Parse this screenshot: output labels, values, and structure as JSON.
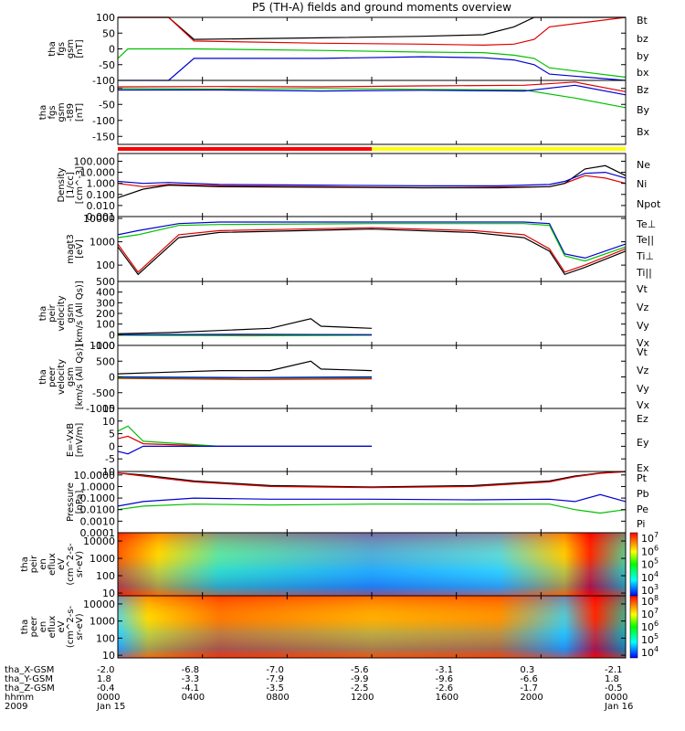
{
  "title": "P5 (TH-A) fields and ground moments overview",
  "chart_data": [
    {
      "id": "fgs",
      "type": "line",
      "ylabel": [
        "tha",
        "fgs",
        "gsm",
        "[nT]"
      ],
      "yscale": "linear",
      "ylim": [
        -100,
        100
      ],
      "yticks": [
        "100",
        "50",
        "0",
        "-50",
        "-100"
      ],
      "series": [
        {
          "name": "Bt",
          "color": "#000000",
          "x": [
            0,
            0.1,
            0.15,
            0.4,
            0.6,
            0.72,
            0.78,
            0.82,
            0.85,
            1
          ],
          "y": [
            100,
            100,
            30,
            35,
            40,
            45,
            70,
            100,
            100,
            100
          ]
        },
        {
          "name": "bz",
          "color": "#e00000",
          "x": [
            0,
            0.1,
            0.15,
            0.4,
            0.6,
            0.72,
            0.78,
            0.82,
            0.85,
            1
          ],
          "y": [
            100,
            100,
            25,
            18,
            15,
            12,
            15,
            30,
            70,
            100
          ]
        },
        {
          "name": "by",
          "color": "#00c000",
          "x": [
            0,
            0.02,
            0.15,
            0.4,
            0.6,
            0.72,
            0.78,
            0.82,
            0.85,
            1
          ],
          "y": [
            -30,
            0,
            0,
            -5,
            -10,
            -12,
            -20,
            -30,
            -60,
            -90
          ]
        },
        {
          "name": "bx",
          "color": "#0000d0",
          "x": [
            0,
            0.1,
            0.15,
            0.4,
            0.6,
            0.72,
            0.78,
            0.82,
            0.85,
            1
          ],
          "y": [
            -100,
            -100,
            -30,
            -30,
            -25,
            -28,
            -35,
            -50,
            -80,
            -100
          ]
        }
      ]
    },
    {
      "id": "fgs_l",
      "type": "line",
      "ylabel": [
        "tha",
        "fgs",
        "gsm",
        "-t89",
        "[nT]"
      ],
      "yscale": "linear",
      "ylim": [
        -175,
        25
      ],
      "yticks": [
        "0",
        "-50",
        "-100",
        "-150"
      ],
      "series": [
        {
          "name": "Bz",
          "color": "#e00000",
          "x": [
            0,
            0.2,
            0.4,
            0.6,
            0.8,
            0.9,
            1
          ],
          "y": [
            5,
            6,
            5,
            8,
            10,
            20,
            -10
          ]
        },
        {
          "name": "By",
          "color": "#00c000",
          "x": [
            0,
            0.2,
            0.4,
            0.6,
            0.8,
            0.9,
            1
          ],
          "y": [
            0,
            -2,
            0,
            -3,
            -5,
            -30,
            -60
          ]
        },
        {
          "name": "Bx",
          "color": "#0000d0",
          "x": [
            0,
            0.2,
            0.4,
            0.6,
            0.8,
            0.9,
            1
          ],
          "y": [
            -5,
            -5,
            -8,
            -6,
            -8,
            10,
            -20
          ]
        }
      ]
    },
    {
      "id": "bar",
      "type": "bar",
      "segments": [
        {
          "x0": 0,
          "x1": 0.5,
          "color": "#ff0000"
        },
        {
          "x0": 0.5,
          "x1": 1,
          "color": "#ffff00"
        }
      ]
    },
    {
      "id": "density",
      "type": "line",
      "ylabel": [
        "Density",
        "[1/cc]",
        "[cm^-3]"
      ],
      "yscale": "log",
      "ylim": [
        0.001,
        500
      ],
      "yticks": [
        "100.000",
        "10.000",
        "1.000",
        "0.100",
        "0.010",
        "0.001"
      ],
      "series": [
        {
          "name": "Ne",
          "color": "#e00000",
          "x": [
            0,
            0.05,
            0.1,
            0.2,
            0.4,
            0.6,
            0.75,
            0.85,
            0.88,
            0.92,
            0.96,
            1
          ],
          "y": [
            1,
            0.5,
            0.8,
            0.6,
            0.5,
            0.4,
            0.45,
            0.5,
            1,
            5,
            3,
            1
          ]
        },
        {
          "name": "Ni",
          "color": "#000000",
          "x": [
            0,
            0.05,
            0.1,
            0.2,
            0.4,
            0.6,
            0.75,
            0.85,
            0.88,
            0.92,
            0.96,
            1
          ],
          "y": [
            0.05,
            0.3,
            0.7,
            0.5,
            0.45,
            0.4,
            0.4,
            0.5,
            1,
            20,
            40,
            5
          ]
        },
        {
          "name": "Npot",
          "color": "#0000d0",
          "x": [
            0,
            0.05,
            0.1,
            0.2,
            0.4,
            0.6,
            0.75,
            0.85,
            0.88,
            0.92,
            0.96,
            1
          ],
          "y": [
            1.5,
            1,
            1.2,
            0.8,
            0.7,
            0.6,
            0.6,
            0.8,
            1.5,
            8,
            10,
            3
          ]
        }
      ]
    },
    {
      "id": "temp",
      "type": "line",
      "ylabel": [
        "magt3",
        "[eV]"
      ],
      "yscale": "log",
      "ylim": [
        20,
        12000
      ],
      "yticks": [
        "10000",
        "1000",
        "100"
      ],
      "series": [
        {
          "name": "Te⊥",
          "color": "#e00000",
          "x": [
            0,
            0.04,
            0.12,
            0.2,
            0.5,
            0.7,
            0.8,
            0.85,
            0.88,
            0.92,
            1
          ],
          "y": [
            800,
            50,
            2000,
            3000,
            4000,
            3000,
            2000,
            500,
            50,
            100,
            500
          ]
        },
        {
          "name": "Te||",
          "color": "#000000",
          "x": [
            0,
            0.04,
            0.12,
            0.2,
            0.5,
            0.7,
            0.8,
            0.85,
            0.88,
            0.92,
            1
          ],
          "y": [
            600,
            40,
            1500,
            2500,
            3500,
            2500,
            1500,
            400,
            40,
            80,
            400
          ]
        },
        {
          "name": "Ti⊥",
          "color": "#0000d0",
          "x": [
            0,
            0.04,
            0.12,
            0.2,
            0.5,
            0.7,
            0.8,
            0.85,
            0.88,
            0.92,
            1
          ],
          "y": [
            2000,
            3000,
            6000,
            7000,
            7000,
            7000,
            7000,
            6000,
            300,
            200,
            800
          ]
        },
        {
          "name": "Ti||",
          "color": "#00c000",
          "x": [
            0,
            0.04,
            0.12,
            0.2,
            0.5,
            0.7,
            0.8,
            0.85,
            0.88,
            0.92,
            1
          ],
          "y": [
            1500,
            2000,
            5000,
            5500,
            6000,
            6000,
            6000,
            5000,
            250,
            150,
            600
          ]
        }
      ]
    },
    {
      "id": "peir",
      "type": "line",
      "ylabel": [
        "tha",
        "peir",
        "velocity",
        "gsm",
        "[km/s (All Qs)]"
      ],
      "yscale": "linear",
      "ylim": [
        -100,
        500
      ],
      "yticks": [
        "500",
        "400",
        "300",
        "200",
        "100",
        "0",
        "-100"
      ],
      "xmax": 0.5,
      "series": [
        {
          "name": "Vt",
          "color": "#000000",
          "x": [
            0,
            0.1,
            0.2,
            0.3,
            0.38,
            0.4,
            0.5
          ],
          "y": [
            10,
            20,
            40,
            60,
            150,
            80,
            60
          ]
        },
        {
          "name": "Vz",
          "color": "#e00000",
          "x": [
            0,
            0.25,
            0.5
          ],
          "y": [
            0,
            0,
            0
          ]
        },
        {
          "name": "Vy",
          "color": "#00c000",
          "x": [
            0,
            0.25,
            0.5
          ],
          "y": [
            -5,
            -10,
            -5
          ]
        },
        {
          "name": "Vx",
          "color": "#0000d0",
          "x": [
            0,
            0.25,
            0.5
          ],
          "y": [
            0,
            5,
            0
          ]
        }
      ]
    },
    {
      "id": "peer",
      "type": "line",
      "ylabel": [
        "tha",
        "peer",
        "velocity",
        "gsm",
        "[km/s (All Qs)]"
      ],
      "yscale": "linear",
      "ylim": [
        -1000,
        1000
      ],
      "yticks": [
        "1000",
        "500",
        "0",
        "-500",
        "-1000"
      ],
      "xmax": 0.5,
      "series": [
        {
          "name": "Vt",
          "color": "#000000",
          "x": [
            0,
            0.1,
            0.2,
            0.3,
            0.38,
            0.4,
            0.5
          ],
          "y": [
            100,
            150,
            200,
            200,
            500,
            250,
            200
          ]
        },
        {
          "name": "Vz",
          "color": "#e00000",
          "x": [
            0,
            0.25,
            0.5
          ],
          "y": [
            -50,
            -80,
            -60
          ]
        },
        {
          "name": "Vy",
          "color": "#00c000",
          "x": [
            0,
            0.25,
            0.5
          ],
          "y": [
            -30,
            -40,
            -30
          ]
        },
        {
          "name": "Vx",
          "color": "#0000d0",
          "x": [
            0,
            0.25,
            0.5
          ],
          "y": [
            0,
            -20,
            0
          ]
        }
      ]
    },
    {
      "id": "efield",
      "type": "line",
      "ylabel": [
        "E=-VxB",
        "[mV/m]"
      ],
      "yscale": "linear",
      "ylim": [
        -10,
        15
      ],
      "yticks": [
        "15",
        "10",
        "5",
        "0",
        "-5",
        "-10"
      ],
      "xmax": 0.5,
      "series": [
        {
          "name": "Ez",
          "color": "#e00000",
          "x": [
            0,
            0.02,
            0.05,
            0.2,
            0.4,
            0.5
          ],
          "y": [
            3,
            4,
            1,
            0,
            0,
            0
          ]
        },
        {
          "name": "Ey",
          "color": "#00c000",
          "x": [
            0,
            0.02,
            0.05,
            0.2,
            0.4,
            0.5
          ],
          "y": [
            6,
            8,
            2,
            0,
            0,
            0
          ]
        },
        {
          "name": "Ex",
          "color": "#0000d0",
          "x": [
            0,
            0.02,
            0.05,
            0.2,
            0.4,
            0.5
          ],
          "y": [
            -2,
            -3,
            0,
            0,
            0,
            0
          ]
        }
      ]
    },
    {
      "id": "pressure",
      "type": "line",
      "ylabel": [
        "Pressure",
        "[nPa]"
      ],
      "yscale": "log",
      "ylim": [
        0.0001,
        20
      ],
      "yticks": [
        "10.0000",
        "1.0000",
        "0.1000",
        "0.0100",
        "0.0010",
        "0.0001"
      ],
      "series": [
        {
          "name": "Pt",
          "color": "#000000",
          "x": [
            0,
            0.05,
            0.15,
            0.3,
            0.5,
            0.7,
            0.85,
            0.9,
            0.95,
            1
          ],
          "y": [
            15,
            10,
            3,
            1.2,
            0.9,
            1.2,
            3,
            8,
            15,
            20
          ]
        },
        {
          "name": "Pb",
          "color": "#e00000",
          "x": [
            0,
            0.05,
            0.15,
            0.3,
            0.5,
            0.7,
            0.85,
            0.9,
            0.95,
            1
          ],
          "y": [
            15,
            8,
            2.5,
            1,
            0.8,
            1,
            2.5,
            7,
            14,
            19
          ]
        },
        {
          "name": "Pe",
          "color": "#00c000",
          "x": [
            0,
            0.05,
            0.15,
            0.3,
            0.5,
            0.7,
            0.85,
            0.9,
            0.95,
            1
          ],
          "y": [
            0.01,
            0.02,
            0.03,
            0.025,
            0.03,
            0.03,
            0.03,
            0.01,
            0.005,
            0.01
          ]
        },
        {
          "name": "Pi",
          "color": "#0000d0",
          "x": [
            0,
            0.05,
            0.15,
            0.3,
            0.5,
            0.7,
            0.85,
            0.9,
            0.95,
            1
          ],
          "y": [
            0.02,
            0.05,
            0.1,
            0.08,
            0.08,
            0.07,
            0.08,
            0.05,
            0.2,
            0.05
          ]
        }
      ]
    },
    {
      "id": "peir_spec",
      "type": "heatmap",
      "ylabel": [
        "tha",
        "peir",
        "en",
        "eflux",
        "eV",
        "(cm^2-s-",
        "sr-eV)"
      ],
      "yscale": "log",
      "ylim": [
        7,
        30000
      ],
      "yticks": [
        "10000",
        "1000",
        "100",
        "10"
      ],
      "colorbar": {
        "ticks": [
          "10^7",
          "10^6",
          "10^5",
          "10^4",
          "10^3"
        ]
      }
    },
    {
      "id": "peer_spec",
      "type": "heatmap",
      "ylabel": [
        "tha",
        "peer",
        "en",
        "eflux",
        "eV",
        "(cm^2-s-",
        "sr-eV)"
      ],
      "yscale": "log",
      "ylim": [
        7,
        30000
      ],
      "yticks": [
        "10000",
        "1000",
        "100",
        "10"
      ],
      "colorbar": {
        "ticks": [
          "10^8",
          "10^7",
          "10^6",
          "10^5",
          "10^4"
        ]
      }
    }
  ],
  "footer": {
    "row_labels": [
      "tha_X-GSM",
      "tha_Y-GSM",
      "tha_Z-GSM",
      "hhmm",
      "2009"
    ],
    "columns": [
      {
        "vals": [
          "-2.0",
          "1.8",
          "-0.4",
          "0000",
          "Jan 15"
        ]
      },
      {
        "vals": [
          "-6.8",
          "-3.3",
          "-4.1",
          "0400",
          ""
        ]
      },
      {
        "vals": [
          "-7.0",
          "-7.9",
          "-3.5",
          "0800",
          ""
        ]
      },
      {
        "vals": [
          "-5.6",
          "-9.9",
          "-2.5",
          "1200",
          ""
        ]
      },
      {
        "vals": [
          "-3.1",
          "-9.6",
          "-2.6",
          "1600",
          ""
        ]
      },
      {
        "vals": [
          "0.3",
          "-6.6",
          "-1.7",
          "2000",
          ""
        ]
      },
      {
        "vals": [
          "-2.1",
          "1.8",
          "-0.5",
          "0000",
          "Jan 16"
        ]
      }
    ]
  }
}
